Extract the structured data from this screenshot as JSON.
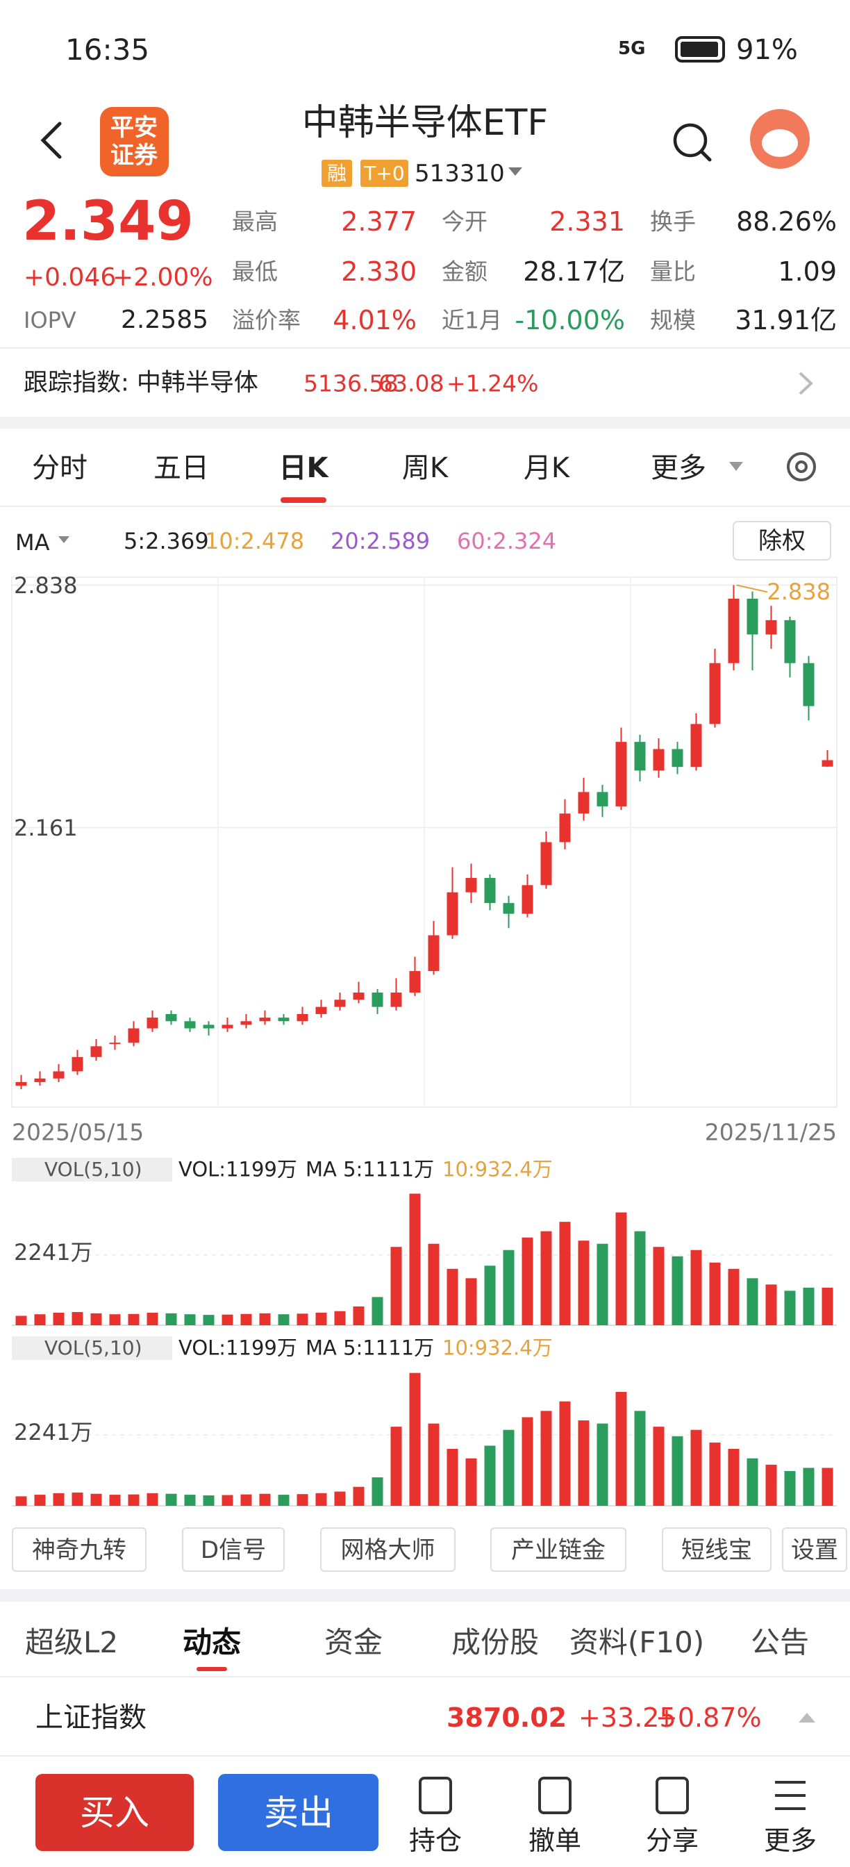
{
  "status_bar": {
    "time": "16:35",
    "network": "5G",
    "battery": "91%"
  },
  "logo": [
    "平安",
    "证券"
  ],
  "header": {
    "title": "中韩半导体ETF",
    "badges": [
      "融",
      "T+0"
    ],
    "code": "513310"
  },
  "quote": {
    "price": "2.349",
    "change": "+0.046",
    "change_pct": "+2.00%",
    "iopv_label": "IOPV",
    "iopv": "2.2585",
    "stats": [
      {
        "label": "最高",
        "value": "2.377"
      },
      {
        "label": "今开",
        "value": "2.331"
      },
      {
        "label": "换手",
        "value": "88.26%"
      },
      {
        "label": "最低",
        "value": "2.330"
      },
      {
        "label": "金额",
        "value": "28.17亿"
      },
      {
        "label": "量比",
        "value": "1.09"
      },
      {
        "label": "溢价率",
        "value": "4.01%"
      },
      {
        "label": "近1月",
        "value": "-10.00%"
      },
      {
        "label": "规模",
        "value": "31.91亿"
      }
    ]
  },
  "tracking": {
    "label": "跟踪指数: 中韩半导体",
    "value": "5136.58",
    "change": "63.08",
    "change_pct": "+1.24%"
  },
  "chart_tabs": [
    "分时",
    "五日",
    "日K",
    "周K",
    "月K",
    "更多"
  ],
  "ma_legend": {
    "label": "MA",
    "items": [
      "5:2.369",
      "10:2.478",
      "20:2.589",
      "60:2.324"
    ],
    "adjust": "除权"
  },
  "chart_data": {
    "type": "candlestick",
    "ylim": [
      1.38,
      2.86
    ],
    "yticks": [
      2.838,
      2.161
    ],
    "grid": true,
    "start_date": "2025/05/15",
    "end_date": "2025/11/25",
    "high_label": "2.838",
    "up_color": "#e8322e",
    "down_color": "#2a9d5c",
    "candles": [
      [
        1.44,
        1.47,
        1.43,
        1.45
      ],
      [
        1.45,
        1.48,
        1.44,
        1.46
      ],
      [
        1.46,
        1.5,
        1.45,
        1.48
      ],
      [
        1.48,
        1.54,
        1.47,
        1.52
      ],
      [
        1.52,
        1.57,
        1.51,
        1.55
      ],
      [
        1.56,
        1.58,
        1.54,
        1.56
      ],
      [
        1.56,
        1.62,
        1.55,
        1.6
      ],
      [
        1.6,
        1.65,
        1.59,
        1.63
      ],
      [
        1.64,
        1.65,
        1.61,
        1.62
      ],
      [
        1.62,
        1.63,
        1.59,
        1.6
      ],
      [
        1.61,
        1.62,
        1.58,
        1.6
      ],
      [
        1.6,
        1.63,
        1.59,
        1.61
      ],
      [
        1.61,
        1.64,
        1.6,
        1.62
      ],
      [
        1.62,
        1.65,
        1.61,
        1.63
      ],
      [
        1.63,
        1.64,
        1.61,
        1.62
      ],
      [
        1.62,
        1.66,
        1.61,
        1.64
      ],
      [
        1.64,
        1.68,
        1.63,
        1.66
      ],
      [
        1.66,
        1.7,
        1.65,
        1.68
      ],
      [
        1.68,
        1.73,
        1.67,
        1.7
      ],
      [
        1.7,
        1.71,
        1.64,
        1.66
      ],
      [
        1.66,
        1.74,
        1.65,
        1.7
      ],
      [
        1.7,
        1.8,
        1.69,
        1.76
      ],
      [
        1.76,
        1.9,
        1.75,
        1.86
      ],
      [
        1.86,
        2.05,
        1.85,
        1.98
      ],
      [
        1.98,
        2.06,
        1.95,
        2.02
      ],
      [
        2.02,
        2.03,
        1.93,
        1.95
      ],
      [
        1.95,
        1.97,
        1.88,
        1.92
      ],
      [
        1.92,
        2.03,
        1.91,
        2.0
      ],
      [
        2.0,
        2.15,
        1.99,
        2.12
      ],
      [
        2.12,
        2.24,
        2.1,
        2.2
      ],
      [
        2.2,
        2.3,
        2.18,
        2.26
      ],
      [
        2.26,
        2.28,
        2.19,
        2.22
      ],
      [
        2.22,
        2.44,
        2.21,
        2.4
      ],
      [
        2.4,
        2.42,
        2.29,
        2.32
      ],
      [
        2.32,
        2.41,
        2.3,
        2.38
      ],
      [
        2.38,
        2.4,
        2.31,
        2.33
      ],
      [
        2.33,
        2.48,
        2.32,
        2.45
      ],
      [
        2.45,
        2.66,
        2.44,
        2.62
      ],
      [
        2.62,
        2.838,
        2.6,
        2.8
      ],
      [
        2.8,
        2.82,
        2.6,
        2.7
      ],
      [
        2.7,
        2.78,
        2.66,
        2.74
      ],
      [
        2.74,
        2.75,
        2.58,
        2.62
      ],
      [
        2.62,
        2.64,
        2.46,
        2.5
      ],
      [
        2.331,
        2.377,
        2.33,
        2.349
      ]
    ]
  },
  "volume": {
    "type": "bar",
    "indicator": "VOL(5,10)",
    "vol": "VOL:1199万",
    "ma5": "MA 5:1111万",
    "ma10": "10:932.4万",
    "ylim": [
      0,
      4500
    ],
    "yticks": [
      {
        "value": 2241,
        "label": "2241万"
      }
    ],
    "values": [
      300,
      350,
      400,
      420,
      380,
      350,
      360,
      400,
      380,
      350,
      330,
      340,
      360,
      380,
      350,
      370,
      400,
      450,
      600,
      900,
      2500,
      4200,
      2600,
      1800,
      1500,
      1900,
      2400,
      2800,
      3000,
      3300,
      2700,
      2600,
      3600,
      3000,
      2500,
      2200,
      2400,
      2000,
      1800,
      1500,
      1300,
      1100,
      1200,
      1199
    ]
  },
  "tools": [
    "神奇九转",
    "D信号",
    "网格大师",
    "产业链金",
    "短线宝",
    "设置"
  ],
  "info_tabs": [
    "超级L2",
    "动态",
    "资金",
    "成份股",
    "资料(F10)",
    "公告"
  ],
  "index_ticker": {
    "name": "上证指数",
    "value": "3870.02",
    "change": "+33.25",
    "change_pct": "+0.87%"
  },
  "bottom_bar": {
    "buy": "买入",
    "sell": "卖出",
    "actions": [
      "持仓",
      "撤单",
      "分享",
      "更多"
    ]
  }
}
